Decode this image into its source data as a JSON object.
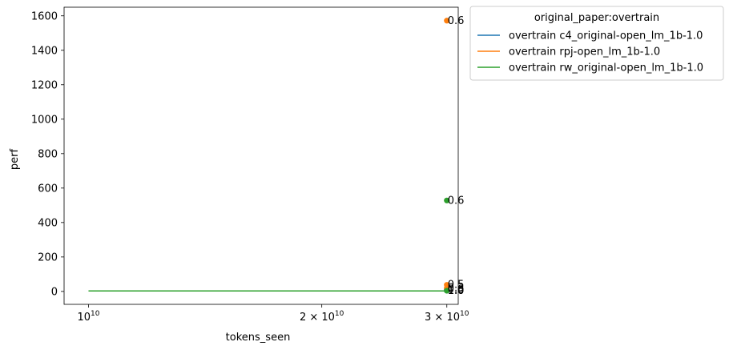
{
  "chart_data": {
    "type": "line",
    "title": "",
    "xlabel": "tokens_seen",
    "ylabel": "perf",
    "xscale": "log",
    "xlim": [
      9300000000,
      30000000000
    ],
    "ylim": [
      -75,
      1650
    ],
    "x_ticks": [
      {
        "value": 10000000000,
        "base": "10",
        "exp": "10"
      },
      {
        "value": 20000000000,
        "coef": "2",
        "base": "10",
        "exp": "10"
      },
      {
        "value": 29000000000,
        "coef": "3",
        "base": "10",
        "exp": "10"
      }
    ],
    "y_ticks": [
      "0",
      "200",
      "400",
      "600",
      "800",
      "1000",
      "1200",
      "1400",
      "1600"
    ],
    "grid": false,
    "legend": {
      "title": "original_paper:overtrain",
      "placement": "outside upper right"
    },
    "series": [
      {
        "name": "overtrain c4_original-open_lm_1b-1.0",
        "color": "#1f77b4",
        "line": {
          "x": [
            10000000000,
            29000000000
          ],
          "y": [
            3,
            3
          ]
        },
        "points": [
          {
            "x": 29000000000,
            "y": 5,
            "label": "1.0"
          },
          {
            "x": 29000000000,
            "y": 12,
            "label": "0.8"
          }
        ]
      },
      {
        "name": "overtrain rpj-open_lm_1b-1.0",
        "color": "#ff7f0e",
        "line": {
          "x": [
            10000000000,
            29000000000
          ],
          "y": [
            3,
            3
          ]
        },
        "points": [
          {
            "x": 29000000000,
            "y": 1572,
            "label": "0.6"
          },
          {
            "x": 29000000000,
            "y": 38,
            "label": "0.5"
          },
          {
            "x": 29000000000,
            "y": 20,
            "label": "0.3"
          }
        ]
      },
      {
        "name": "overtrain rw_original-open_lm_1b-1.0",
        "color": "#2ca02c",
        "line": {
          "x": [
            10000000000,
            29000000000
          ],
          "y": [
            3,
            3
          ]
        },
        "points": [
          {
            "x": 29000000000,
            "y": 528,
            "label": "0.6"
          },
          {
            "x": 29000000000,
            "y": 4,
            "label": "1.0"
          }
        ]
      }
    ]
  }
}
